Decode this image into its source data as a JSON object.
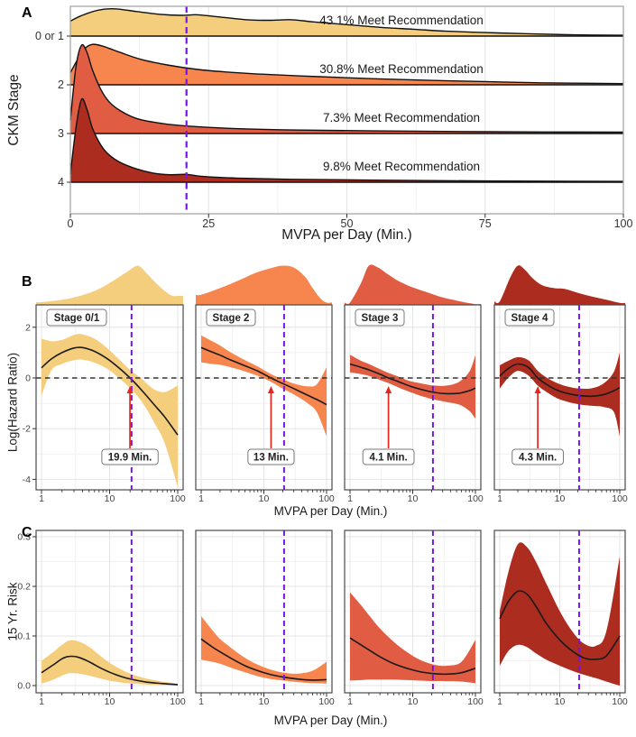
{
  "panel_labels": {
    "a": "A",
    "b": "B",
    "c": "C"
  },
  "colors": {
    "stage01": "#F5CE7D",
    "stage2": "#F6854E",
    "stage3": "#E05C43",
    "stage4": "#AC2C20",
    "reference_line": "#7714E8",
    "zero_line": "#333333",
    "arrow": "#E8251C",
    "curve": "#1A1A1A",
    "grid_major": "#E4E4E4",
    "grid_minor": "#F1F1F1",
    "panel_border": "#4A4A4A",
    "panel_a_border": "#A0A0A0"
  },
  "chart_data": [
    {
      "id": "ckm-ridgeline",
      "type": "area",
      "panel": "A",
      "xlabel": "MVPA per Day (Min.)",
      "ylabel": "CKM Stage",
      "xlim": [
        0,
        100
      ],
      "xticks": [
        0,
        25,
        50,
        75,
        100
      ],
      "xtick_labels": [
        "0",
        "25",
        "50",
        "75",
        "100"
      ],
      "reference_line_x": 21,
      "rows": [
        {
          "stage": "0 or 1",
          "color_key": "stage01",
          "annotation": "43.1% Meet Recommendation",
          "amplitude_rows": 0.56,
          "density": [
            [
              0,
              0.55
            ],
            [
              2,
              0.75
            ],
            [
              5,
              0.95
            ],
            [
              8,
              1
            ],
            [
              12,
              0.9
            ],
            [
              16,
              0.8
            ],
            [
              20,
              0.76
            ],
            [
              23,
              0.78
            ],
            [
              27,
              0.7
            ],
            [
              32,
              0.6
            ],
            [
              36,
              0.58
            ],
            [
              40,
              0.6
            ],
            [
              44,
              0.52
            ],
            [
              50,
              0.42
            ],
            [
              56,
              0.32
            ],
            [
              62,
              0.25
            ],
            [
              68,
              0.18
            ],
            [
              75,
              0.13
            ],
            [
              82,
              0.09
            ],
            [
              90,
              0.05
            ],
            [
              100,
              0.03
            ]
          ]
        },
        {
          "stage": "2",
          "color_key": "stage2",
          "annotation": "30.8% Meet Recommendation",
          "amplitude_rows": 0.83,
          "density": [
            [
              0,
              0.3
            ],
            [
              1,
              0.55
            ],
            [
              2.5,
              0.88
            ],
            [
              4,
              1
            ],
            [
              6,
              0.95
            ],
            [
              9,
              0.8
            ],
            [
              13,
              0.62
            ],
            [
              18,
              0.48
            ],
            [
              23,
              0.38
            ],
            [
              28,
              0.32
            ],
            [
              35,
              0.26
            ],
            [
              45,
              0.2
            ],
            [
              55,
              0.15
            ],
            [
              65,
              0.11
            ],
            [
              75,
              0.08
            ],
            [
              85,
              0.05
            ],
            [
              100,
              0.03
            ]
          ]
        },
        {
          "stage": "3",
          "color_key": "stage3",
          "annotation": "7.3% Meet Recommendation",
          "amplitude_rows": 1.81,
          "density": [
            [
              0,
              0.15
            ],
            [
              1,
              0.75
            ],
            [
              2,
              1
            ],
            [
              3,
              0.92
            ],
            [
              4,
              0.72
            ],
            [
              5.5,
              0.5
            ],
            [
              7,
              0.36
            ],
            [
              9,
              0.26
            ],
            [
              12,
              0.17
            ],
            [
              16,
              0.12
            ],
            [
              20,
              0.09
            ],
            [
              25,
              0.07
            ],
            [
              30,
              0.055
            ],
            [
              40,
              0.04
            ],
            [
              55,
              0.03
            ],
            [
              75,
              0.02
            ],
            [
              100,
              0.015
            ]
          ]
        },
        {
          "stage": "4",
          "color_key": "stage4",
          "annotation": "9.8% Meet Recommendation",
          "amplitude_rows": 1.7,
          "density": [
            [
              0,
              0.1
            ],
            [
              1,
              0.65
            ],
            [
              2,
              1
            ],
            [
              3,
              0.88
            ],
            [
              4,
              0.65
            ],
            [
              5.5,
              0.45
            ],
            [
              7,
              0.33
            ],
            [
              9,
              0.24
            ],
            [
              12,
              0.16
            ],
            [
              15,
              0.11
            ],
            [
              18,
              0.09
            ],
            [
              21,
              0.095
            ],
            [
              24,
              0.07
            ],
            [
              30,
              0.05
            ],
            [
              40,
              0.035
            ],
            [
              55,
              0.025
            ],
            [
              75,
              0.015
            ],
            [
              100,
              0.01
            ]
          ]
        }
      ]
    },
    {
      "id": "log-hazard-ratio",
      "type": "line",
      "panel": "B",
      "xlabel": "MVPA per Day (Min.)",
      "ylabel": "Log(Hazard Ratio)",
      "xscale": "log",
      "xlim": [
        1,
        100
      ],
      "xticks": [
        1,
        10,
        100
      ],
      "xtick_labels": [
        "1",
        "10",
        "100"
      ],
      "ylim": [
        -4.4,
        2.88
      ],
      "yticks": [
        2,
        0,
        -2,
        -4
      ],
      "ytick_labels": [
        "2",
        "0",
        "-2",
        "-4"
      ],
      "zero_line_y": 0,
      "reference_line_x": 21,
      "subplots": [
        {
          "stage_label": "Stage 0/1",
          "color_key": "stage01",
          "crossing_label": "19.9 Min.",
          "crossing_x": 19.9,
          "x": [
            1,
            1.4,
            2,
            3,
            4,
            6,
            9,
            13,
            20,
            30,
            45,
            65,
            100
          ],
          "y": [
            0.4,
            0.75,
            1,
            1.18,
            1.2,
            1.05,
            0.78,
            0.45,
            0,
            -0.5,
            -1.05,
            -1.55,
            -2.25
          ],
          "lower": [
            -0.7,
            0.3,
            0.55,
            0.7,
            0.72,
            0.6,
            0.38,
            0.05,
            -0.4,
            -0.95,
            -1.75,
            -2.6,
            -4.3
          ],
          "upper": [
            1.55,
            1.45,
            1.5,
            1.7,
            1.72,
            1.55,
            1.2,
            0.8,
            0.32,
            -0.05,
            -0.45,
            -0.55,
            -0.3
          ],
          "density": [
            [
              1,
              0.06
            ],
            [
              2,
              0.12
            ],
            [
              4,
              0.24
            ],
            [
              7,
              0.4
            ],
            [
              12,
              0.64
            ],
            [
              18,
              0.84
            ],
            [
              26,
              1
            ],
            [
              35,
              0.8
            ],
            [
              50,
              0.52
            ],
            [
              70,
              0.3
            ],
            [
              85,
              0.22
            ],
            [
              100,
              0.22
            ]
          ]
        },
        {
          "stage_label": "Stage 2",
          "color_key": "stage2",
          "crossing_label": "13 Min.",
          "crossing_x": 13,
          "x": [
            1,
            1.5,
            2,
            3,
            5,
            8,
            13,
            20,
            30,
            50,
            70,
            100
          ],
          "y": [
            1.2,
            1.02,
            0.9,
            0.7,
            0.48,
            0.27,
            0,
            -0.22,
            -0.42,
            -0.68,
            -0.85,
            -1.05
          ],
          "lower": [
            0.62,
            0.55,
            0.52,
            0.42,
            0.26,
            0.08,
            -0.15,
            -0.42,
            -0.65,
            -1,
            -1.35,
            -2.3
          ],
          "upper": [
            1.68,
            1.45,
            1.28,
            1,
            0.7,
            0.45,
            0.15,
            -0.05,
            -0.22,
            -0.33,
            -0.25,
            0.42
          ],
          "density": [
            [
              1,
              0.25
            ],
            [
              2,
              0.42
            ],
            [
              4,
              0.62
            ],
            [
              7,
              0.8
            ],
            [
              12,
              0.92
            ],
            [
              20,
              1
            ],
            [
              30,
              0.95
            ],
            [
              45,
              0.72
            ],
            [
              60,
              0.42
            ],
            [
              80,
              0.15
            ],
            [
              100,
              0.05
            ]
          ]
        },
        {
          "stage_label": "Stage 3",
          "color_key": "stage3",
          "crossing_label": "4.1 Min.",
          "crossing_x": 4.1,
          "x": [
            1,
            1.5,
            2,
            3,
            4.1,
            6,
            9,
            14,
            22,
            35,
            55,
            80,
            100
          ],
          "y": [
            0.55,
            0.42,
            0.32,
            0.15,
            0,
            -0.15,
            -0.32,
            -0.46,
            -0.57,
            -0.62,
            -0.6,
            -0.5,
            -0.4
          ],
          "lower": [
            0.22,
            0.15,
            0.08,
            -0.08,
            -0.2,
            -0.38,
            -0.55,
            -0.72,
            -0.85,
            -0.95,
            -1.05,
            -1.3,
            -1.6
          ],
          "upper": [
            0.92,
            0.68,
            0.55,
            0.35,
            0.2,
            0.05,
            -0.12,
            -0.22,
            -0.3,
            -0.3,
            -0.15,
            0.25,
            0.9
          ],
          "density": [
            [
              1,
              0.05
            ],
            [
              1.5,
              0.55
            ],
            [
              2,
              1
            ],
            [
              2.8,
              0.95
            ],
            [
              4,
              0.78
            ],
            [
              6,
              0.6
            ],
            [
              10,
              0.44
            ],
            [
              18,
              0.3
            ],
            [
              30,
              0.18
            ],
            [
              50,
              0.1
            ],
            [
              75,
              0.04
            ],
            [
              100,
              0.01
            ]
          ]
        },
        {
          "stage_label": "Stage 4",
          "color_key": "stage4",
          "crossing_label": "4.3 Min.",
          "crossing_x": 4.3,
          "x": [
            1,
            1.4,
            2,
            3,
            4.3,
            6,
            9,
            14,
            22,
            35,
            55,
            80,
            100
          ],
          "y": [
            0.08,
            0.38,
            0.55,
            0.42,
            0,
            -0.25,
            -0.48,
            -0.62,
            -0.7,
            -0.72,
            -0.65,
            -0.5,
            -0.38
          ],
          "lower": [
            -0.42,
            0.02,
            0.28,
            0.1,
            -0.3,
            -0.55,
            -0.8,
            -0.95,
            -1.05,
            -1.1,
            -1.15,
            -1.35,
            -2.3
          ],
          "upper": [
            0.5,
            0.68,
            0.82,
            0.7,
            0.28,
            0.02,
            -0.2,
            -0.35,
            -0.42,
            -0.4,
            -0.2,
            0.25,
            1
          ],
          "density": [
            [
              1,
              0.08
            ],
            [
              1.5,
              0.7
            ],
            [
              2,
              1
            ],
            [
              2.6,
              0.9
            ],
            [
              3.5,
              0.68
            ],
            [
              5,
              0.5
            ],
            [
              8,
              0.42
            ],
            [
              12,
              0.4
            ],
            [
              20,
              0.3
            ],
            [
              35,
              0.2
            ],
            [
              60,
              0.12
            ],
            [
              100,
              0.04
            ]
          ]
        }
      ]
    },
    {
      "id": "fifteen-year-risk",
      "type": "line",
      "panel": "C",
      "xlabel": "MVPA per Day (Min.)",
      "ylabel": "15 Yr. Risk",
      "xscale": "log",
      "xlim": [
        1,
        100
      ],
      "xticks": [
        1,
        10,
        100
      ],
      "xtick_labels": [
        "1",
        "10",
        "100"
      ],
      "ylim": [
        -0.014,
        0.313
      ],
      "yticks": [
        0.3,
        0.2,
        0.1,
        0
      ],
      "ytick_labels": [
        "0.3",
        "0.2",
        "0.1",
        "0.0"
      ],
      "reference_line_x": 21,
      "subplots": [
        {
          "color_key": "stage01",
          "x": [
            1,
            1.5,
            2,
            2.6,
            3.5,
            5,
            7,
            10,
            15,
            22,
            35,
            60,
            100
          ],
          "y": [
            0.026,
            0.042,
            0.054,
            0.059,
            0.057,
            0.048,
            0.037,
            0.027,
            0.018,
            0.012,
            0.007,
            0.004,
            0.002
          ],
          "lower": [
            0.004,
            0.012,
            0.02,
            0.025,
            0.024,
            0.02,
            0.015,
            0.01,
            0.006,
            0.004,
            0.002,
            0.001,
            0
          ],
          "upper": [
            0.05,
            0.068,
            0.082,
            0.091,
            0.089,
            0.078,
            0.062,
            0.046,
            0.032,
            0.022,
            0.014,
            0.008,
            0.004
          ]
        },
        {
          "color_key": "stage2",
          "x": [
            1,
            1.5,
            2,
            3,
            5,
            8,
            13,
            21,
            35,
            60,
            100
          ],
          "y": [
            0.094,
            0.078,
            0.068,
            0.055,
            0.04,
            0.03,
            0.022,
            0.017,
            0.013,
            0.011,
            0.012
          ],
          "lower": [
            0.052,
            0.048,
            0.044,
            0.036,
            0.027,
            0.019,
            0.013,
            0.01,
            0.007,
            0.005,
            0.004
          ],
          "upper": [
            0.14,
            0.112,
            0.094,
            0.076,
            0.056,
            0.042,
            0.032,
            0.026,
            0.024,
            0.03,
            0.048
          ]
        },
        {
          "color_key": "stage3",
          "x": [
            1,
            1.5,
            2,
            3,
            5,
            8,
            13,
            22,
            35,
            60,
            100
          ],
          "y": [
            0.096,
            0.082,
            0.072,
            0.058,
            0.044,
            0.035,
            0.028,
            0.024,
            0.023,
            0.026,
            0.035
          ],
          "lower": [
            0.01,
            0.011,
            0.012,
            0.012,
            0.012,
            0.011,
            0.01,
            0.009,
            0.009,
            0.008,
            0.005
          ],
          "upper": [
            0.188,
            0.162,
            0.142,
            0.115,
            0.088,
            0.068,
            0.052,
            0.042,
            0.04,
            0.048,
            0.092
          ]
        },
        {
          "color_key": "stage4",
          "x": [
            1,
            1.4,
            2,
            2.8,
            4,
            6,
            10,
            16,
            25,
            40,
            60,
            100
          ],
          "y": [
            0.135,
            0.17,
            0.19,
            0.185,
            0.16,
            0.125,
            0.092,
            0.07,
            0.056,
            0.053,
            0.06,
            0.1
          ],
          "lower": [
            0.04,
            0.07,
            0.082,
            0.078,
            0.065,
            0.052,
            0.04,
            0.03,
            0.022,
            0.015,
            0.008,
            0
          ],
          "upper": [
            0.15,
            0.23,
            0.285,
            0.28,
            0.25,
            0.205,
            0.15,
            0.11,
            0.085,
            0.08,
            0.11,
            0.26
          ]
        }
      ]
    }
  ]
}
